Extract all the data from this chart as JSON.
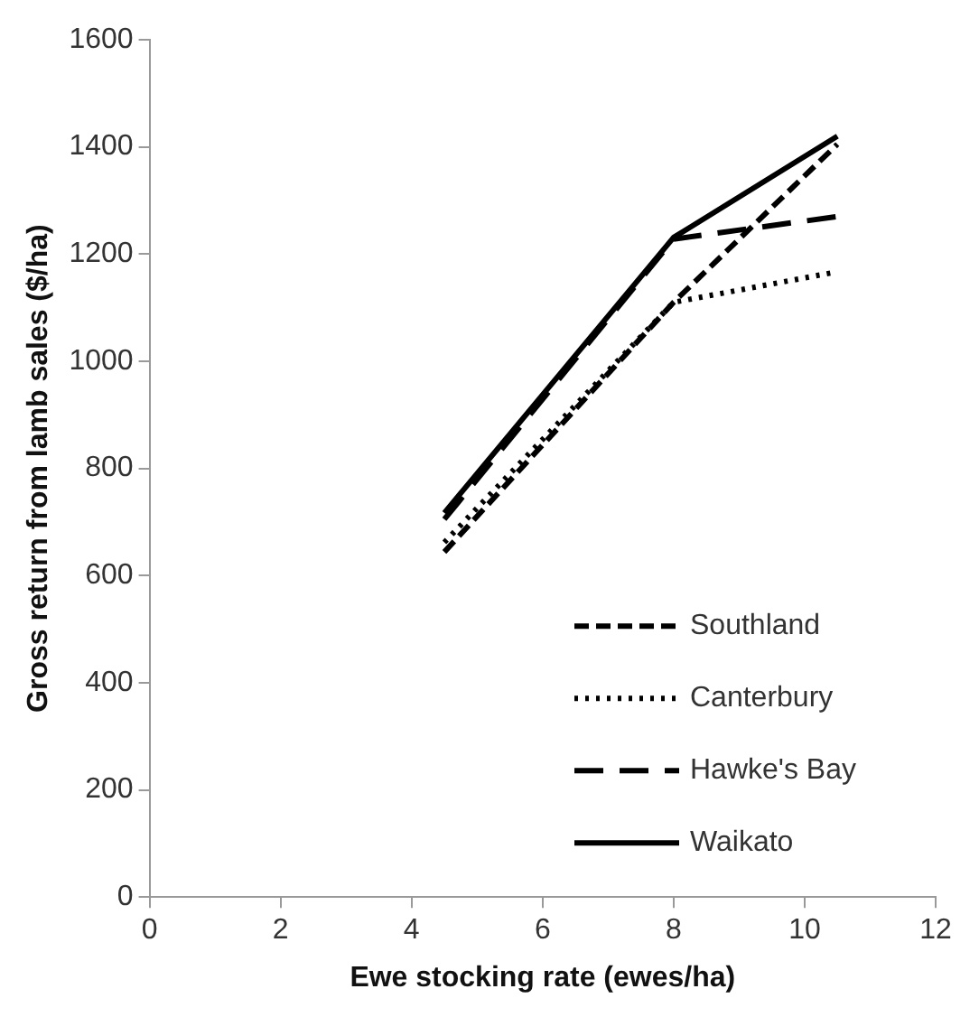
{
  "chart_data": {
    "type": "line",
    "xlabel": "Ewe stocking rate (ewes/ha)",
    "ylabel": "Gross return from lamb sales ($/ha)",
    "x": [
      4.5,
      8,
      10.5
    ],
    "series": [
      {
        "name": "Southland",
        "color": "#000000",
        "line_style": "dashed",
        "values": [
          644,
          1110,
          1405
        ]
      },
      {
        "name": "Canterbury",
        "color": "#000000",
        "line_style": "dotted",
        "values": [
          662,
          1110,
          1167
        ]
      },
      {
        "name": "Hawke's Bay",
        "color": "#000000",
        "line_style": "dashed",
        "values": [
          705,
          1228,
          1270
        ]
      },
      {
        "name": "Waikato",
        "color": "#000000",
        "line_style": "solid",
        "values": [
          717,
          1231,
          1420
        ]
      }
    ],
    "xlim": [
      0,
      12
    ],
    "xticks": [
      0,
      2,
      4,
      6,
      8,
      10,
      12
    ],
    "ylim": [
      0,
      1600
    ],
    "yticks": [
      0,
      200,
      400,
      600,
      800,
      1000,
      1200,
      1400,
      1600
    ],
    "grid": false,
    "legend": "bottom right",
    "marker": "none"
  }
}
